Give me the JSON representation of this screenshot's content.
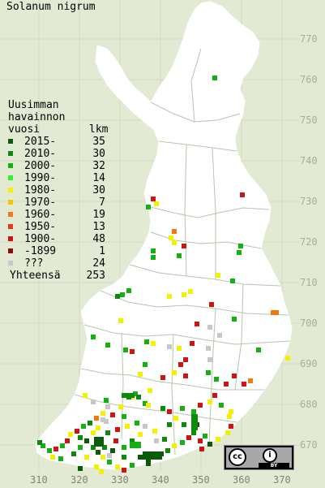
{
  "title": "Solanum nigrum",
  "legend": {
    "header": [
      "Uusimman",
      "havainnon",
      "vuosi"
    ],
    "count_header": "lkm",
    "items": [
      {
        "label": "2015-",
        "count": "35",
        "color": "#0a5a0a"
      },
      {
        "label": "2010-",
        "count": "30",
        "color": "#0d8a0d"
      },
      {
        "label": "2000-",
        "count": "32",
        "color": "#16b016"
      },
      {
        "label": "1990-",
        "count": "14",
        "color": "#33ee33"
      },
      {
        "label": "1980-",
        "count": "30",
        "color": "#f2f200"
      },
      {
        "label": "1970-",
        "count": "7",
        "color": "#f5c400"
      },
      {
        "label": "1960-",
        "count": "19",
        "color": "#f07a10"
      },
      {
        "label": "1950-",
        "count": "13",
        "color": "#e03a1a"
      },
      {
        "label": "1900-",
        "count": "48",
        "color": "#cc1414"
      },
      {
        "label": "-1899",
        "count": "1",
        "color": "#8b0a0a"
      },
      {
        "label": " ???",
        "count": "24",
        "color": "#c8c8c8"
      }
    ],
    "total_label": "Yhteensä",
    "total_count": "253"
  },
  "y_axis": [
    "770",
    "760",
    "750",
    "740",
    "730",
    "720",
    "710",
    "700",
    "690",
    "680",
    "670"
  ],
  "x_axis": [
    "310",
    "320",
    "330",
    "340",
    "350",
    "360",
    "370"
  ],
  "license": {
    "cc": "cc",
    "attribution": "i",
    "by": "BY"
  },
  "colors": {
    "background": "#e3ead3",
    "land": "#ffffff",
    "border": "#bcc4ae"
  }
}
